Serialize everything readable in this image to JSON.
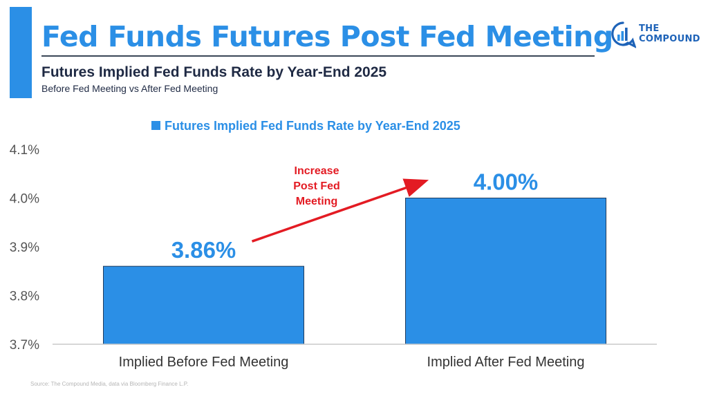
{
  "header": {
    "title": "Fed Funds Futures Post Fed Meeting",
    "subtitle": "Futures Implied Fed Funds Rate by Year-End 2025",
    "subsubtitle": "Before Fed Meeting vs After Fed Meeting"
  },
  "logo": {
    "line1": "THE",
    "line2": "COMPOUND",
    "color": "#1e63b8"
  },
  "source": "Source: The Compound Media, data via Bloomberg Finance L.P.",
  "colors": {
    "accent": "#2b8fe6",
    "bar": "#2b8fe6",
    "arrow": "#e31b23",
    "text": "#1f2a44"
  },
  "chart_data": {
    "type": "bar",
    "title": "",
    "xlabel": "",
    "ylabel": "",
    "categories": [
      "Implied Before Fed Meeting",
      "Implied After Fed Meeting"
    ],
    "series": [
      {
        "name": "Futures Implied Fed Funds Rate by Year-End 2025",
        "values": [
          3.86,
          4.0
        ]
      }
    ],
    "data_labels": [
      "3.86%",
      "4.00%"
    ],
    "ylim": [
      3.7,
      4.1
    ],
    "yticks": [
      3.7,
      3.8,
      3.9,
      4.0,
      4.1
    ],
    "ytick_labels": [
      "3.7%",
      "3.8%",
      "3.9%",
      "4.0%",
      "4.1%"
    ],
    "grid": false,
    "legend_position": "top-center",
    "annotation": {
      "lines": [
        "Increase",
        "Post Fed",
        "Meeting"
      ],
      "color": "#e31b23",
      "arrow": "from first bar to second bar"
    }
  }
}
